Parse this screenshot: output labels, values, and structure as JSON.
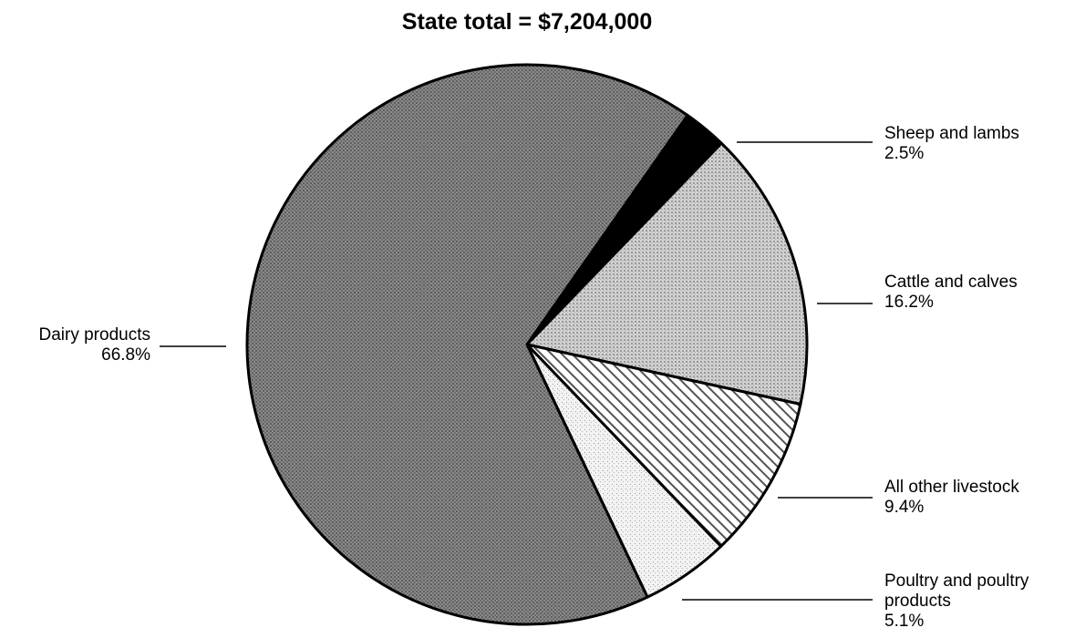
{
  "chart_data": {
    "type": "pie",
    "title": "State total = $7,204,000",
    "slices": [
      {
        "label": "Sheep and lambs",
        "value": 2.5,
        "value_label": "2.5%",
        "fill": "solid-black"
      },
      {
        "label": "Cattle and calves",
        "value": 16.2,
        "value_label": "16.2%",
        "fill": "light-dot-screen"
      },
      {
        "label": "All other livestock",
        "value": 9.4,
        "value_label": "9.4%",
        "fill": "diagonal-hatch"
      },
      {
        "label": "Poultry and poultry products",
        "value": 5.1,
        "value_label": "5.1%",
        "fill": "fine-stipple"
      },
      {
        "label": "Dairy products",
        "value": 66.8,
        "value_label": "66.8%",
        "fill": "dark-dot-screen"
      }
    ]
  },
  "colors": {
    "dark_screen": "#777777",
    "light_screen": "#bdbdbd",
    "stipple": "#e6e6e6",
    "black": "#000000"
  }
}
